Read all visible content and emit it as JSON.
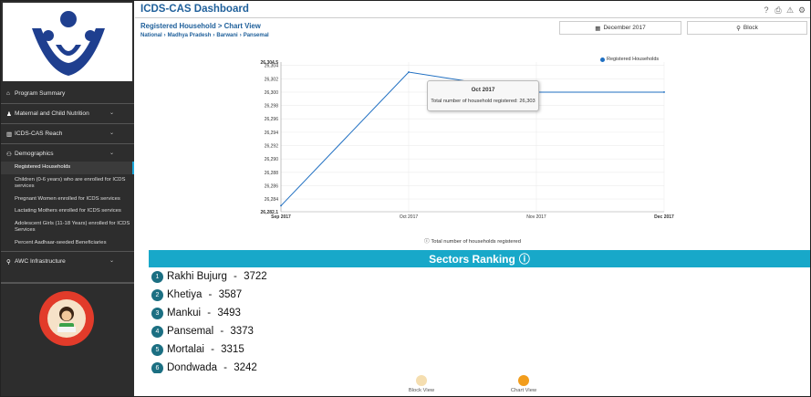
{
  "header": {
    "app_title": "ICDS-CAS Dashboard",
    "subtitle_page": "Registered Household",
    "subtitle_sep": ">",
    "subtitle_view": "Chart View",
    "breadcrumb": [
      "National",
      "Madhya Pradesh",
      "Barwani",
      "Pansemal"
    ],
    "date_button": "December 2017",
    "block_button": "Block",
    "icons": [
      "help-icon",
      "print-icon",
      "warning-icon",
      "gear-icon"
    ]
  },
  "sidebar": {
    "items": [
      {
        "label": "Program Summary",
        "icon": "home-icon",
        "chevron": false
      },
      {
        "label": "Maternal and Child Nutrition",
        "icon": "child-icon",
        "chevron": true
      },
      {
        "label": "ICDS-CAS Reach",
        "icon": "bar-chart-icon",
        "chevron": true
      },
      {
        "label": "Demographics",
        "icon": "users-icon",
        "chevron": true
      }
    ],
    "sub_items": [
      {
        "label": "Registered Households",
        "active": true
      },
      {
        "label": "Children (0-6 years) who are enrolled for ICDS services",
        "active": false
      },
      {
        "label": "Pregnant Women enrolled for ICDS services",
        "active": false
      },
      {
        "label": "Lactating Mothers enrolled for ICDS services",
        "active": false
      },
      {
        "label": "Adolescent Girls (11-18 Years) enrolled for ICDS Services",
        "active": false
      },
      {
        "label": "Percent Aadhaar-seeded Beneficiaries",
        "active": false
      }
    ],
    "awc_item": {
      "label": "AWC Infrastructure",
      "icon": "location-icon",
      "chevron": true
    }
  },
  "chart_data": {
    "type": "line",
    "x": [
      "Sep 2017",
      "Oct 2017",
      "Nov 2017",
      "Dec 2017"
    ],
    "series": [
      {
        "name": "Registered Households",
        "values": [
          26283,
          26303,
          26300,
          26300
        ],
        "color": "#1f6fc2"
      }
    ],
    "y_ticks": [
      "26,304.5",
      "26,304",
      "26,302",
      "26,300",
      "26,298",
      "26,296",
      "26,294",
      "26,292",
      "26,290",
      "26,288",
      "26,286",
      "26,284",
      "26,282.1"
    ],
    "ylim": [
      26282.1,
      26304.5
    ],
    "grid": true,
    "legend_position": "top-right",
    "tooltip": {
      "title": "Oct 2017",
      "text": "Total number of household registered: 26,303"
    },
    "caption": "Total number of households registered"
  },
  "ranking": {
    "title": "Sectors Ranking",
    "rows": [
      {
        "rank": "1",
        "name": "Rakhi Bujurg",
        "value": "3722"
      },
      {
        "rank": "2",
        "name": "Khetiya",
        "value": "3587"
      },
      {
        "rank": "3",
        "name": "Mankui",
        "value": "3493"
      },
      {
        "rank": "4",
        "name": "Pansemal",
        "value": "3373"
      },
      {
        "rank": "5",
        "name": "Mortalai",
        "value": "3315"
      },
      {
        "rank": "6",
        "name": "Dondwada",
        "value": "3242"
      }
    ]
  },
  "view_toggle": {
    "block_label": "Block View",
    "chart_label": "Chart View"
  }
}
